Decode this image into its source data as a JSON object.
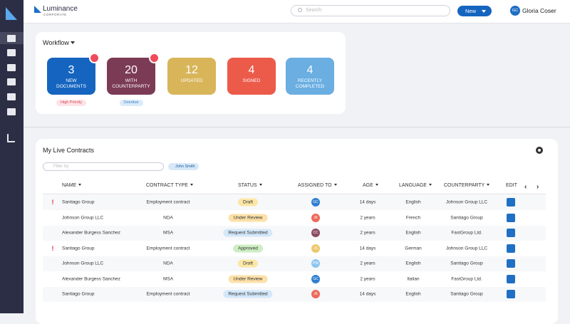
{
  "header": {
    "brand": "Luminance",
    "brand_sub": "CORPORATE",
    "search_placeholder": "Search",
    "new_button": "New",
    "user_initials": "GC",
    "user_name": "Gloria Coser"
  },
  "workflow": {
    "title": "Workflow",
    "tiles": [
      {
        "count": "3",
        "label": "NEW DOCUMENTS",
        "color": "#1565c0",
        "alert": true,
        "tag": "High Priority",
        "tag_bg": "#fde3e6",
        "tag_fg": "#d04a5a"
      },
      {
        "count": "20",
        "label": "WITH COUNTERPARTY",
        "color": "#7b3b55",
        "alert": true,
        "tag": "Overdue",
        "tag_bg": "#dcebf9",
        "tag_fg": "#3a7cc4"
      },
      {
        "count": "12",
        "label": "UPDATED",
        "color": "#d9b55a",
        "alert": false
      },
      {
        "count": "4",
        "label": "SIGNED",
        "color": "#ec5a4a",
        "alert": false
      },
      {
        "count": "4",
        "label": "RECENTLY COMPLETED",
        "color": "#6aaee2",
        "alert": false
      }
    ]
  },
  "contracts": {
    "title": "My Live Contracts",
    "filter_placeholder": "Filter by",
    "chip": "John Smith",
    "columns": [
      "NAME",
      "CONTRACT TYPE",
      "STATUS",
      "ASSIGNED TO",
      "AGE",
      "LANGUAGE",
      "COUNTERPARTY",
      "EDIT"
    ],
    "rows": [
      {
        "flag": "!",
        "name": "Santiago Group",
        "type": "Employment contract",
        "status": "Draft",
        "status_color": "#fbe7a6",
        "assignee": "GC",
        "assignee_color": "#2f7fd0",
        "age": "14 days",
        "language": "English",
        "counterparty": "Johnson Group LLC"
      },
      {
        "name": "Johnson Group LLC",
        "type": "NDA",
        "status": "Under Review",
        "status_color": "#fde1a9",
        "assignee": "JK",
        "assignee_color": "#ec6a5a",
        "age": "2 years",
        "language": "French",
        "counterparty": "Santiago Group"
      },
      {
        "name": "Alexander Burgess Sanchez",
        "type": "MSA",
        "status": "Request Submitted",
        "status_color": "#d4e8fa",
        "assignee": "CC",
        "assignee_color": "#8a4a5e",
        "age": "2 years",
        "language": "English",
        "counterparty": "FastGroup Ltd."
      },
      {
        "flag": "!",
        "name": "Santiago Group",
        "type": "Employment contract",
        "status": "Approved",
        "status_color": "#cdeec4",
        "assignee": "JS",
        "assignee_color": "#ecc86a",
        "age": "14 days",
        "language": "German",
        "counterparty": "Johnson Group LLC"
      },
      {
        "name": "Johnson Group LLC",
        "type": "NDA",
        "status": "Draft",
        "status_color": "#fbe7a6",
        "assignee": "PW",
        "assignee_color": "#8cc6ee",
        "age": "2 years",
        "language": "English",
        "counterparty": "Santiago Group"
      },
      {
        "name": "Alexander Burgess Sanchez",
        "type": "MSA",
        "status": "Under Review",
        "status_color": "#fde1a9",
        "assignee": "GC",
        "assignee_color": "#2f7fd0",
        "age": "2 years",
        "language": "Italian",
        "counterparty": "FastGroup Ltd."
      },
      {
        "name": "Santiago Group",
        "type": "Employment contract",
        "status": "Request Submitted",
        "status_color": "#d4e8fa",
        "assignee": "JK",
        "assignee_color": "#ec6a5a",
        "age": "14 days",
        "language": "English",
        "counterparty": "Santiago Group"
      }
    ]
  }
}
